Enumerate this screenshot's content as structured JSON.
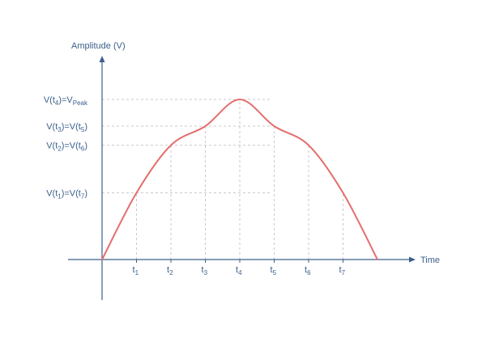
{
  "chart_data": {
    "type": "line",
    "title": "",
    "xlabel": "Time",
    "ylabel": "Amplitude (V)",
    "grid": true,
    "legend": "none",
    "x_ticks": [
      {
        "base": "t",
        "sub": "1",
        "x": 1
      },
      {
        "base": "t",
        "sub": "2",
        "x": 2
      },
      {
        "base": "t",
        "sub": "3",
        "x": 3
      },
      {
        "base": "t",
        "sub": "4",
        "x": 4
      },
      {
        "base": "t",
        "sub": "5",
        "x": 5
      },
      {
        "base": "t",
        "sub": "6",
        "x": 6
      },
      {
        "base": "t",
        "sub": "7",
        "x": 7
      }
    ],
    "y_levels": [
      {
        "y": 0.5,
        "label": [
          {
            "t": "V(t"
          },
          {
            "t": "1",
            "sub": true
          },
          {
            "t": ")=V(t"
          },
          {
            "t": "7",
            "sub": true
          },
          {
            "t": ")"
          }
        ]
      },
      {
        "y": 0.857,
        "label": [
          {
            "t": "V(t"
          },
          {
            "t": "2",
            "sub": true
          },
          {
            "t": ")=V(t"
          },
          {
            "t": "6",
            "sub": true
          },
          {
            "t": ")"
          }
        ]
      },
      {
        "y": 1.0,
        "label": [
          {
            "t": "V(t"
          },
          {
            "t": "3",
            "sub": true
          },
          {
            "t": ")=V(t"
          },
          {
            "t": "5",
            "sub": true
          },
          {
            "t": ")"
          }
        ]
      },
      {
        "y": 1.2,
        "label": [
          {
            "t": "V(t"
          },
          {
            "t": "4",
            "sub": true
          },
          {
            "t": ")=V"
          },
          {
            "t": "Peak",
            "sub": true
          }
        ]
      }
    ],
    "series": [
      {
        "color": "#e36e6c",
        "points": [
          [
            0,
            0
          ],
          [
            1,
            0.5
          ],
          [
            2,
            0.857
          ],
          [
            3,
            1.0
          ],
          [
            4,
            1.2
          ],
          [
            5,
            1.0
          ],
          [
            6,
            0.857
          ],
          [
            7,
            0.5
          ],
          [
            8,
            0
          ]
        ]
      }
    ],
    "xlim": [
      0,
      8
    ],
    "ylim": [
      0,
      1.2
    ]
  },
  "colors": {
    "axis": "#3b5f8c",
    "grid": "#c9c9c9",
    "curve": "#e36e6c"
  }
}
